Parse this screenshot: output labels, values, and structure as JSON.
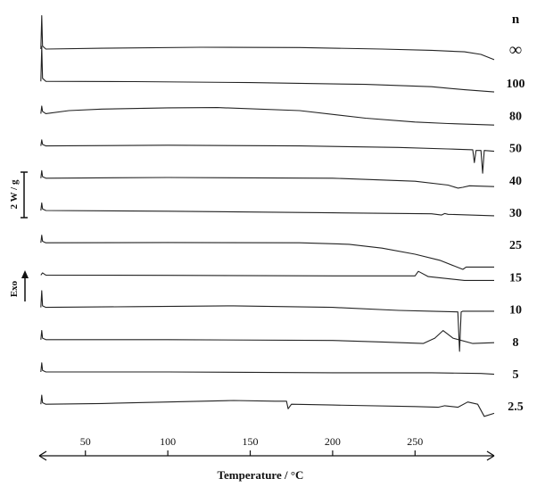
{
  "chart_data": {
    "type": "line",
    "title": "",
    "xlabel": "Temperature / °C",
    "ylabel": "",
    "xlim": [
      22,
      298
    ],
    "x_ticks": [
      50,
      100,
      150,
      200,
      250
    ],
    "x_tick_labels": [
      "50",
      "100",
      "150",
      "200",
      "250"
    ],
    "legend_header": "n",
    "y_scale_bar_label": "2 W / g",
    "exo_label": "Exo",
    "grid": false,
    "curve_values_unit": "relative heat flow (vertical offset per trace, W/g)",
    "series": [
      {
        "name": "∞",
        "x": [
          23,
          23.5,
          24,
          26,
          60,
          120,
          180,
          230,
          260,
          280,
          290,
          298
        ],
        "y": [
          0,
          2.2,
          0.2,
          0,
          0.05,
          0.12,
          0.1,
          0,
          -0.08,
          -0.18,
          -0.35,
          -0.7
        ]
      },
      {
        "name": "100",
        "x": [
          23,
          23.5,
          24,
          26,
          80,
          150,
          220,
          260,
          280,
          298
        ],
        "y": [
          0,
          2.3,
          0.2,
          0,
          -0.02,
          -0.08,
          -0.2,
          -0.35,
          -0.55,
          -0.7
        ]
      },
      {
        "name": "80",
        "x": [
          23,
          23.5,
          24,
          26,
          40,
          60,
          100,
          130,
          180,
          220,
          250,
          270,
          298
        ],
        "y": [
          0,
          0.5,
          0.15,
          0,
          0.2,
          0.3,
          0.38,
          0.4,
          0.2,
          -0.3,
          -0.55,
          -0.65,
          -0.75
        ]
      },
      {
        "name": "50",
        "x": [
          23,
          23.5,
          24,
          26,
          100,
          180,
          240,
          270,
          285,
          286,
          287,
          290,
          291,
          292,
          298
        ],
        "y": [
          0,
          0.4,
          0.1,
          0,
          0.05,
          0.0,
          -0.1,
          -0.2,
          -0.25,
          -1.1,
          -0.3,
          -0.3,
          -1.8,
          -0.3,
          -0.35
        ]
      },
      {
        "name": "40",
        "x": [
          23,
          23.5,
          24,
          26,
          100,
          200,
          250,
          270,
          276,
          279,
          283,
          298
        ],
        "y": [
          0,
          0.5,
          0.1,
          0,
          0.05,
          0.0,
          -0.2,
          -0.45,
          -0.65,
          -0.6,
          -0.5,
          -0.55
        ]
      },
      {
        "name": "30",
        "x": [
          23,
          23.5,
          24,
          26,
          100,
          200,
          260,
          266,
          268,
          270,
          298
        ],
        "y": [
          0,
          0.5,
          0.1,
          0,
          -0.05,
          -0.15,
          -0.22,
          -0.3,
          -0.2,
          -0.25,
          -0.35
        ]
      },
      {
        "name": "25",
        "x": [
          23,
          23.5,
          24,
          26,
          100,
          180,
          210,
          230,
          250,
          265,
          279,
          281,
          298
        ],
        "y": [
          0,
          0.5,
          0.1,
          0,
          0.02,
          0.0,
          -0.1,
          -0.35,
          -0.75,
          -1.15,
          -1.75,
          -1.6,
          -1.6
        ]
      },
      {
        "name": "15",
        "x": [
          23,
          24,
          26,
          100,
          200,
          250,
          252,
          258,
          280,
          298
        ],
        "y": [
          0,
          0.15,
          0,
          -0.02,
          -0.05,
          -0.05,
          0.25,
          -0.1,
          -0.35,
          -0.35
        ]
      },
      {
        "name": "10",
        "x": [
          23,
          23.5,
          24,
          26,
          80,
          140,
          200,
          240,
          260,
          276,
          277,
          278,
          279,
          298
        ],
        "y": [
          0,
          1.1,
          0.1,
          0,
          0.05,
          0.1,
          0.0,
          -0.2,
          -0.25,
          -0.3,
          -2.9,
          -0.3,
          -0.25,
          -0.25
        ]
      },
      {
        "name": "8",
        "x": [
          23,
          23.5,
          24,
          26,
          100,
          200,
          230,
          255,
          262,
          267,
          273,
          285,
          298
        ],
        "y": [
          0,
          0.6,
          0.1,
          0,
          0.0,
          -0.05,
          -0.15,
          -0.25,
          0.1,
          0.6,
          0.1,
          -0.25,
          -0.2
        ]
      },
      {
        "name": "5",
        "x": [
          23,
          23.5,
          24,
          26,
          100,
          200,
          260,
          290,
          298
        ],
        "y": [
          0,
          0.6,
          0.1,
          0,
          0.0,
          -0.05,
          -0.05,
          -0.1,
          -0.15
        ]
      },
      {
        "name": "2.5",
        "x": [
          23,
          23.5,
          24,
          26,
          60,
          100,
          140,
          165,
          172,
          173,
          175,
          200,
          250,
          264,
          268,
          276,
          282,
          288,
          292,
          298
        ],
        "y": [
          0,
          0.6,
          0.1,
          0,
          0.05,
          0.15,
          0.25,
          0.2,
          0.2,
          -0.3,
          0.0,
          -0.05,
          -0.15,
          -0.2,
          -0.1,
          -0.2,
          0.15,
          0.0,
          -0.8,
          -0.6
        ]
      }
    ]
  }
}
